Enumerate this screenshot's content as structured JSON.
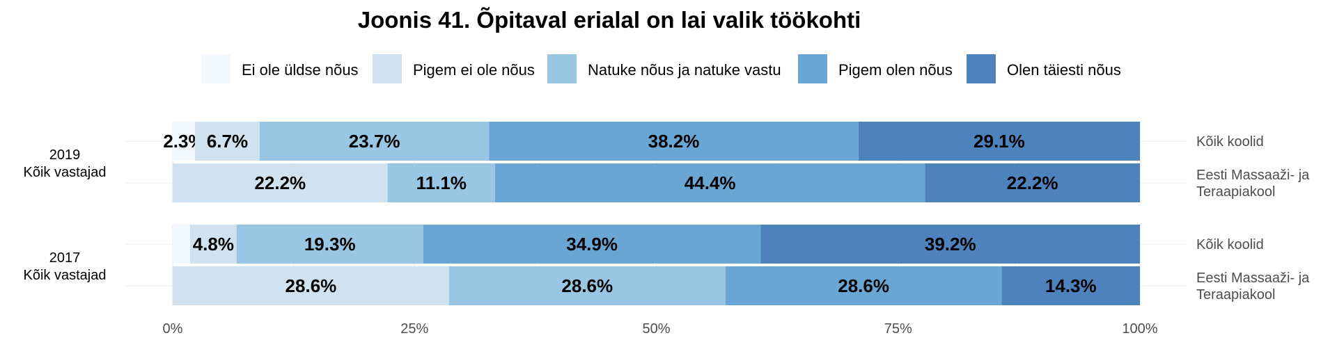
{
  "chart_data": {
    "type": "bar",
    "orientation": "horizontal",
    "stacked": "percent",
    "title": "Joonis 41. Õpitaval erialal on lai valik töökohti",
    "xlim": [
      0,
      1
    ],
    "x_ticks": [
      "0%",
      "25%",
      "50%",
      "75%",
      "100%"
    ],
    "legend_position": "top",
    "grid": true,
    "categories": [
      "Ei ole üldse nõus",
      "Pigem ei ole nõus",
      "Natuke nõus ja natuke vastu",
      "Pigem olen nõus",
      "Olen täiesti nõus"
    ],
    "colors": [
      "#f3f7fe",
      "#d0e2ef",
      "#98c6e3",
      "#6aa6d3",
      "#4d82bc"
    ],
    "groups": [
      {
        "label_lines": [
          "2019",
          "Kõik vastajad"
        ],
        "rows": [
          {
            "label_lines": [
              "Kõik koolid"
            ],
            "values": [
              2.3,
              6.7,
              23.7,
              38.2,
              29.1
            ],
            "labels": [
              "2.3%",
              "6.7%",
              "23.7%",
              "38.2%",
              "29.1%"
            ]
          },
          {
            "label_lines": [
              "Eesti Massaaži- ja",
              "Teraapiakool"
            ],
            "values": [
              0,
              22.2,
              11.1,
              44.4,
              22.2
            ],
            "labels": [
              "",
              "22.2%",
              "11.1%",
              "44.4%",
              "22.2%"
            ]
          }
        ]
      },
      {
        "label_lines": [
          "2017",
          "Kõik vastajad"
        ],
        "rows": [
          {
            "label_lines": [
              "Kõik koolid"
            ],
            "values": [
              1.8,
              4.8,
              19.3,
              34.9,
              39.2
            ],
            "labels": [
              "",
              "4.8%",
              "19.3%",
              "34.9%",
              "39.2%"
            ]
          },
          {
            "label_lines": [
              "Eesti Massaaži- ja",
              "Teraapiakool"
            ],
            "values": [
              0,
              28.6,
              28.6,
              28.6,
              14.3
            ],
            "labels": [
              "",
              "28.6%",
              "28.6%",
              "28.6%",
              "14.3%"
            ]
          }
        ]
      }
    ]
  }
}
